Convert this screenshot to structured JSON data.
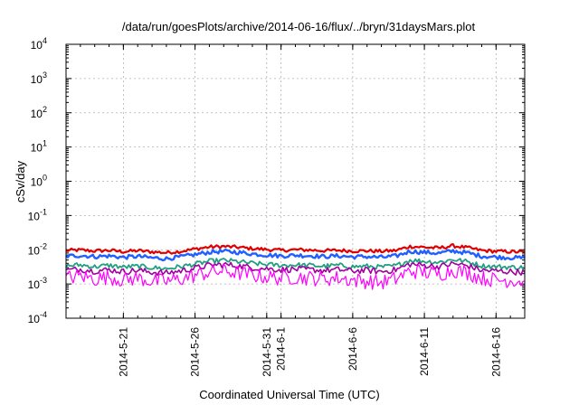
{
  "chart_data": {
    "type": "line",
    "title": "/data/run/goesPlots/archive/2014-06-16/flux/../bryn/31daysMars.plot",
    "xlabel": "Coordinated Universal Time (UTC)",
    "ylabel": "cSv/day",
    "yscale": "log",
    "ylim": [
      0.0001,
      10000
    ],
    "xlim": [
      "2014-05-17",
      "2014-06-18"
    ],
    "grid": true,
    "y_ticks": [
      {
        "base": "10",
        "exp": "-4"
      },
      {
        "base": "10",
        "exp": "-3"
      },
      {
        "base": "10",
        "exp": "-2"
      },
      {
        "base": "10",
        "exp": "-1"
      },
      {
        "base": "10",
        "exp": "0"
      },
      {
        "base": "10",
        "exp": "1"
      },
      {
        "base": "10",
        "exp": "2"
      },
      {
        "base": "10",
        "exp": "3"
      },
      {
        "base": "10",
        "exp": "4"
      }
    ],
    "x_ticks": [
      {
        "date": "2014-05-21",
        "label": "2014-5-21"
      },
      {
        "date": "2014-05-26",
        "label": "2014-5-26"
      },
      {
        "date": "2014-05-31",
        "label": "2014-5-31"
      },
      {
        "date": "2014-06-01",
        "label": "2014-6-1"
      },
      {
        "date": "2014-06-06",
        "label": "2014-6-6"
      },
      {
        "date": "2014-06-11",
        "label": "2014-6-11"
      },
      {
        "date": "2014-06-16",
        "label": "2014-6-16"
      }
    ],
    "series": [
      {
        "color": "#e00000",
        "x": [
          "2014-05-17",
          "2014-05-18",
          "2014-05-19",
          "2014-05-20",
          "2014-05-21",
          "2014-05-22",
          "2014-05-23",
          "2014-05-24",
          "2014-05-25",
          "2014-05-26",
          "2014-05-27",
          "2014-05-28",
          "2014-05-29",
          "2014-05-30",
          "2014-05-31",
          "2014-06-01",
          "2014-06-02",
          "2014-06-03",
          "2014-06-04",
          "2014-06-05",
          "2014-06-06",
          "2014-06-07",
          "2014-06-08",
          "2014-06-09",
          "2014-06-10",
          "2014-06-11",
          "2014-06-12",
          "2014-06-13",
          "2014-06-14",
          "2014-06-15",
          "2014-06-16",
          "2014-06-17",
          "2014-06-18"
        ],
        "values": [
          0.0095,
          0.0098,
          0.0092,
          0.0096,
          0.0088,
          0.0094,
          0.0087,
          0.0082,
          0.009,
          0.0105,
          0.012,
          0.0125,
          0.0118,
          0.0108,
          0.0102,
          0.0096,
          0.01,
          0.0098,
          0.0094,
          0.0096,
          0.0092,
          0.0093,
          0.009,
          0.0095,
          0.0125,
          0.0118,
          0.0112,
          0.013,
          0.0115,
          0.0095,
          0.009,
          0.0088,
          0.0085
        ]
      },
      {
        "color": "#2060ff",
        "x": [
          "2014-05-17",
          "2014-05-18",
          "2014-05-19",
          "2014-05-20",
          "2014-05-21",
          "2014-05-22",
          "2014-05-23",
          "2014-05-24",
          "2014-05-25",
          "2014-05-26",
          "2014-05-27",
          "2014-05-28",
          "2014-05-29",
          "2014-05-30",
          "2014-05-31",
          "2014-06-01",
          "2014-06-02",
          "2014-06-03",
          "2014-06-04",
          "2014-06-05",
          "2014-06-06",
          "2014-06-07",
          "2014-06-08",
          "2014-06-09",
          "2014-06-10",
          "2014-06-11",
          "2014-06-12",
          "2014-06-13",
          "2014-06-14",
          "2014-06-15",
          "2014-06-16",
          "2014-06-17",
          "2014-06-18"
        ],
        "values": [
          0.0065,
          0.0068,
          0.0063,
          0.0066,
          0.006,
          0.0064,
          0.0058,
          0.0055,
          0.0062,
          0.0072,
          0.0085,
          0.009,
          0.0084,
          0.0076,
          0.007,
          0.0066,
          0.0069,
          0.0067,
          0.0063,
          0.0066,
          0.0062,
          0.0063,
          0.006,
          0.0065,
          0.009,
          0.0084,
          0.0079,
          0.0092,
          0.0081,
          0.0065,
          0.0061,
          0.0059,
          0.0057
        ]
      },
      {
        "color": "#20a080",
        "x": [
          "2014-05-17",
          "2014-05-18",
          "2014-05-19",
          "2014-05-20",
          "2014-05-21",
          "2014-05-22",
          "2014-05-23",
          "2014-05-24",
          "2014-05-25",
          "2014-05-26",
          "2014-05-27",
          "2014-05-28",
          "2014-05-29",
          "2014-05-30",
          "2014-05-31",
          "2014-06-01",
          "2014-06-02",
          "2014-06-03",
          "2014-06-04",
          "2014-06-05",
          "2014-06-06",
          "2014-06-07",
          "2014-06-08",
          "2014-06-09",
          "2014-06-10",
          "2014-06-11",
          "2014-06-12",
          "2014-06-13",
          "2014-06-14",
          "2014-06-15",
          "2014-06-16",
          "2014-06-17",
          "2014-06-18"
        ],
        "values": [
          0.0034,
          0.0036,
          0.0032,
          0.0035,
          0.0031,
          0.0033,
          0.003,
          0.0028,
          0.0032,
          0.0038,
          0.0046,
          0.0049,
          0.0045,
          0.004,
          0.0037,
          0.0035,
          0.0036,
          0.0035,
          0.0033,
          0.0035,
          0.0032,
          0.0033,
          0.0031,
          0.0034,
          0.005,
          0.0046,
          0.0043,
          0.0052,
          0.0045,
          0.0034,
          0.0032,
          0.0031,
          0.003
        ]
      },
      {
        "color": "#a000a0",
        "x": [
          "2014-05-17",
          "2014-05-18",
          "2014-05-19",
          "2014-05-20",
          "2014-05-21",
          "2014-05-22",
          "2014-05-23",
          "2014-05-24",
          "2014-05-25",
          "2014-05-26",
          "2014-05-27",
          "2014-05-28",
          "2014-05-29",
          "2014-05-30",
          "2014-05-31",
          "2014-06-01",
          "2014-06-02",
          "2014-06-03",
          "2014-06-04",
          "2014-06-05",
          "2014-06-06",
          "2014-06-07",
          "2014-06-08",
          "2014-06-09",
          "2014-06-10",
          "2014-06-11",
          "2014-06-12",
          "2014-06-13",
          "2014-06-14",
          "2014-06-15",
          "2014-06-16",
          "2014-06-17",
          "2014-06-18"
        ],
        "values": [
          0.0025,
          0.0027,
          0.0024,
          0.0026,
          0.0023,
          0.0025,
          0.0022,
          0.0021,
          0.0024,
          0.0029,
          0.0035,
          0.0037,
          0.0034,
          0.003,
          0.0028,
          0.0026,
          0.0027,
          0.0026,
          0.0025,
          0.0026,
          0.0024,
          0.0025,
          0.0023,
          0.0026,
          0.0038,
          0.0035,
          0.0032,
          0.0039,
          0.0034,
          0.0025,
          0.0024,
          0.0023,
          0.0022
        ]
      },
      {
        "color": "#ff00ff",
        "x": [
          "2014-05-17",
          "2014-05-18",
          "2014-05-19",
          "2014-05-20",
          "2014-05-21",
          "2014-05-22",
          "2014-05-23",
          "2014-05-24",
          "2014-05-25",
          "2014-05-26",
          "2014-05-27",
          "2014-05-28",
          "2014-05-29",
          "2014-05-30",
          "2014-05-31",
          "2014-06-01",
          "2014-06-02",
          "2014-06-03",
          "2014-06-04",
          "2014-06-05",
          "2014-06-06",
          "2014-06-07",
          "2014-06-08",
          "2014-06-09",
          "2014-06-10",
          "2014-06-11",
          "2014-06-12",
          "2014-06-13",
          "2014-06-14",
          "2014-06-15",
          "2014-06-16",
          "2014-06-17",
          "2014-06-18"
        ],
        "values": [
          0.0015,
          0.0017,
          0.0014,
          0.0016,
          0.0013,
          0.0015,
          0.0012,
          0.0012,
          0.0014,
          0.0018,
          0.0022,
          0.0024,
          0.0021,
          0.0018,
          0.0016,
          0.0015,
          0.0016,
          0.0015,
          0.0014,
          0.0015,
          0.0013,
          0.0012,
          0.0011,
          0.0014,
          0.0024,
          0.0022,
          0.0019,
          0.0026,
          0.0021,
          0.0015,
          0.0013,
          0.0013,
          0.0012
        ]
      }
    ]
  }
}
